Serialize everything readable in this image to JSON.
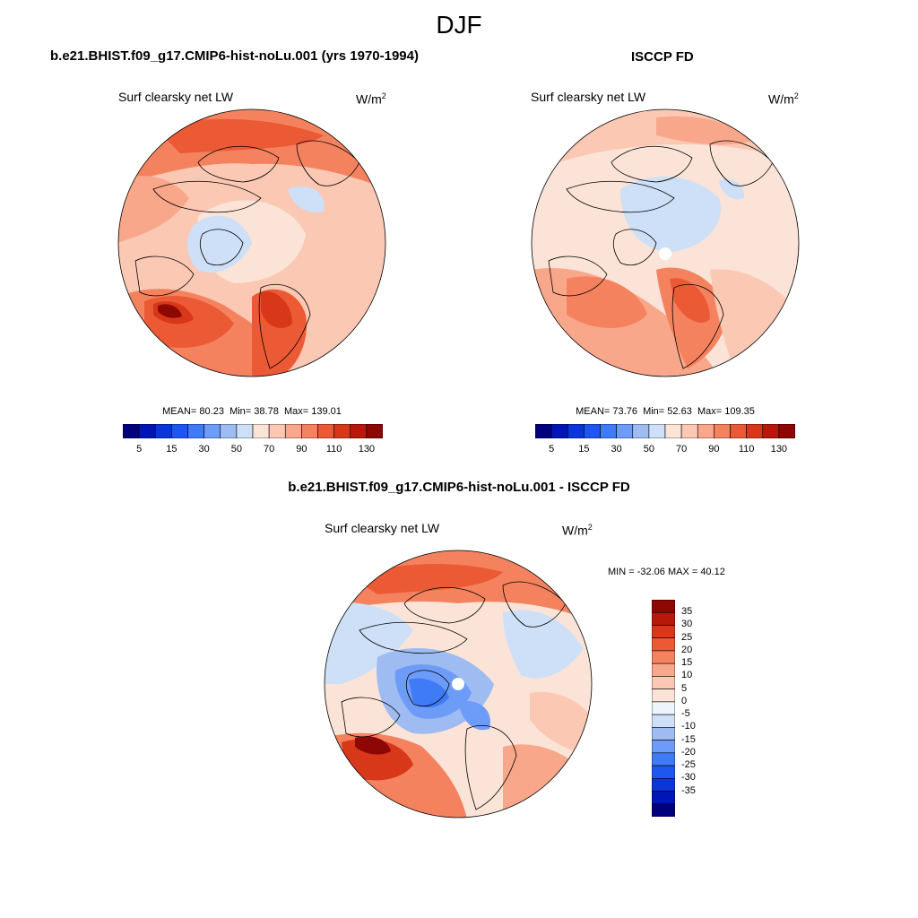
{
  "season": "DJF",
  "colors": {
    "abs_levels": [
      "#00007f",
      "#0015b5",
      "#0a35d8",
      "#1e57ef",
      "#3f7af7",
      "#6d9cf8",
      "#9ebbf2",
      "#cde0f7",
      "#fbe4d7",
      "#fbc8b3",
      "#f9a78a",
      "#f5825f",
      "#ec5a35",
      "#d8371a",
      "#b8170b",
      "#8d0704"
    ],
    "diff_levels": [
      "#00007f",
      "#0015b5",
      "#0a35d8",
      "#1e57ef",
      "#3f7af7",
      "#6d9cf8",
      "#9ebbf2",
      "#cde0f7",
      "#eef4fb",
      "#fbe4d7",
      "#fbc8b3",
      "#f9a78a",
      "#f5825f",
      "#ec5a35",
      "#d8371a",
      "#b8170b",
      "#8d0704"
    ],
    "land_outline": "#000000"
  },
  "panels": {
    "model": {
      "title": "b.e21.BHIST.f09_g17.CMIP6-hist-noLu.001 (yrs 1970-1994)",
      "variable": "Surf clearsky net LW",
      "units": "W/m",
      "units_exp": "2",
      "mean_label": "MEAN=",
      "mean": "80.23",
      "min_label": "Min=",
      "min": "38.78",
      "max_label": "Max=",
      "max": "139.01",
      "colorbar_ticks": [
        "5",
        "15",
        "30",
        "50",
        "70",
        "90",
        "110",
        "130"
      ]
    },
    "obs": {
      "title": "ISCCP FD",
      "variable": "Surf clearsky net LW",
      "units": "W/m",
      "units_exp": "2",
      "mean_label": "MEAN=",
      "mean": "73.76",
      "min_label": "Min=",
      "min": "52.63",
      "max_label": "Max=",
      "max": "109.35",
      "colorbar_ticks": [
        "5",
        "15",
        "30",
        "50",
        "70",
        "90",
        "110",
        "130"
      ]
    },
    "diff": {
      "title": "b.e21.BHIST.f09_g17.CMIP6-hist-noLu.001 - ISCCP FD",
      "variable": "Surf clearsky net LW",
      "units": "W/m",
      "units_exp": "2",
      "minmax_text": "MIN = -32.06 MAX =  40.12",
      "colorbar_ticks": [
        "35",
        "30",
        "25",
        "20",
        "15",
        "10",
        "5",
        "0",
        "-5",
        "-10",
        "-15",
        "-20",
        "-25",
        "-30",
        "-35"
      ]
    }
  },
  "chart_data": [
    {
      "type": "heatmap",
      "projection": "north polar stereographic",
      "title": "b.e21.BHIST.f09_g17.CMIP6-hist-noLu.001 (yrs 1970-1994)",
      "variable": "Surf clearsky net LW",
      "units": "W/m2",
      "mean": 80.23,
      "min": 38.78,
      "max": 139.01,
      "contour_levels": [
        5,
        10,
        15,
        20,
        30,
        40,
        50,
        60,
        70,
        80,
        90,
        100,
        110,
        120,
        130
      ],
      "colorbar_ticks": [
        5,
        15,
        30,
        50,
        70,
        90,
        110,
        130
      ]
    },
    {
      "type": "heatmap",
      "projection": "north polar stereographic",
      "title": "ISCCP FD",
      "variable": "Surf clearsky net LW",
      "units": "W/m2",
      "mean": 73.76,
      "min": 52.63,
      "max": 109.35,
      "contour_levels": [
        5,
        10,
        15,
        20,
        30,
        40,
        50,
        60,
        70,
        80,
        90,
        100,
        110,
        120,
        130
      ],
      "colorbar_ticks": [
        5,
        15,
        30,
        50,
        70,
        90,
        110,
        130
      ]
    },
    {
      "type": "heatmap",
      "projection": "north polar stereographic",
      "title": "b.e21.BHIST.f09_g17.CMIP6-hist-noLu.001 - ISCCP FD",
      "variable": "Surf clearsky net LW",
      "units": "W/m2",
      "min": -32.06,
      "max": 40.12,
      "contour_levels": [
        -35,
        -30,
        -25,
        -20,
        -15,
        -10,
        -5,
        0,
        5,
        10,
        15,
        20,
        25,
        30,
        35
      ],
      "colorbar_ticks": [
        35,
        30,
        25,
        20,
        15,
        10,
        5,
        0,
        -5,
        -10,
        -15,
        -20,
        -25,
        -30,
        -35
      ]
    }
  ]
}
